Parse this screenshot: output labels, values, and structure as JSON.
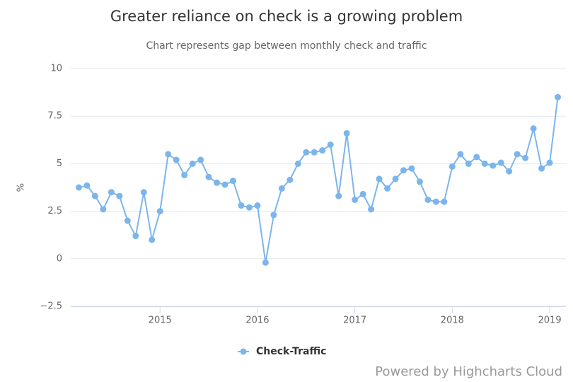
{
  "chart_data": {
    "type": "line",
    "title": "Greater reliance on check is a growing problem",
    "subtitle": "Chart represents gap between monthly check and traffic",
    "y_label": "%",
    "credits": "Powered by Highcharts Cloud",
    "x": [
      "2014-03",
      "2014-04",
      "2014-05",
      "2014-06",
      "2014-07",
      "2014-08",
      "2014-09",
      "2014-10",
      "2014-11",
      "2014-12",
      "2015-01",
      "2015-02",
      "2015-03",
      "2015-04",
      "2015-05",
      "2015-06",
      "2015-07",
      "2015-08",
      "2015-09",
      "2015-10",
      "2015-11",
      "2015-12",
      "2016-01",
      "2016-02",
      "2016-03",
      "2016-04",
      "2016-05",
      "2016-06",
      "2016-07",
      "2016-08",
      "2016-09",
      "2016-10",
      "2016-11",
      "2016-12",
      "2017-01",
      "2017-02",
      "2017-03",
      "2017-04",
      "2017-05",
      "2017-06",
      "2017-07",
      "2017-08",
      "2017-09",
      "2017-10",
      "2017-11",
      "2017-12",
      "2018-01",
      "2018-02",
      "2018-03",
      "2018-04",
      "2018-05",
      "2018-06",
      "2018-07",
      "2018-08",
      "2018-09",
      "2018-10",
      "2018-11",
      "2018-12",
      "2019-01",
      "2019-02"
    ],
    "series": [
      {
        "name": "Check-Traffic",
        "color": "#7cb5ec",
        "values": [
          3.75,
          3.85,
          3.3,
          2.6,
          3.5,
          3.3,
          2.0,
          1.2,
          3.5,
          1.0,
          2.5,
          5.5,
          5.2,
          4.4,
          5.0,
          5.2,
          4.3,
          4.0,
          3.9,
          4.1,
          2.8,
          2.7,
          2.8,
          -0.2,
          2.3,
          3.7,
          4.15,
          5.0,
          5.6,
          5.6,
          5.7,
          6.0,
          3.3,
          6.6,
          3.1,
          3.4,
          2.6,
          4.2,
          3.7,
          4.2,
          4.65,
          4.75,
          4.05,
          3.1,
          3.0,
          3.0,
          4.85,
          5.5,
          5.0,
          5.35,
          5.0,
          4.9,
          5.05,
          4.6,
          5.5,
          5.3,
          6.85,
          4.75,
          5.05,
          8.5
        ]
      }
    ],
    "xlim": [
      "2014-02",
      "2019-03"
    ],
    "xticks": [
      "2015",
      "2016",
      "2017",
      "2018",
      "2019"
    ],
    "ylim": [
      -2.5,
      10
    ],
    "yticks": [
      {
        "value": -2.5,
        "label": "−2.5"
      },
      0,
      2.5,
      5,
      7.5,
      10
    ],
    "grid": true,
    "legend": "bottom"
  }
}
